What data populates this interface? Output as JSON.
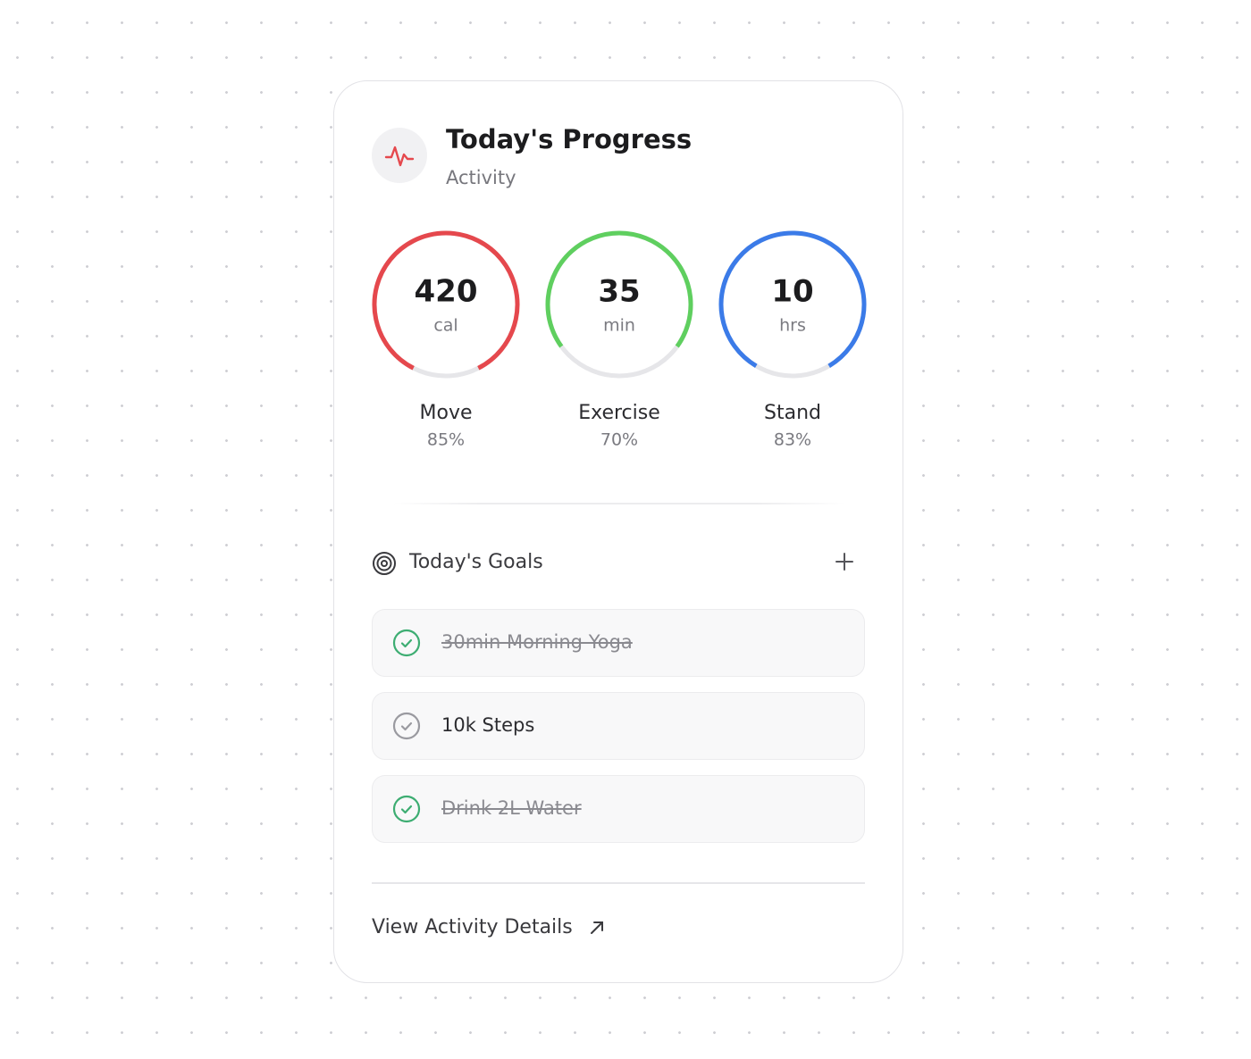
{
  "header": {
    "title": "Today's Progress",
    "subtitle": "Activity"
  },
  "rings": [
    {
      "value": 420,
      "unit": "cal",
      "label": "Move",
      "percent": {
        "value": 85,
        "label": "85%"
      },
      "color": "#e5484d"
    },
    {
      "value": 35,
      "unit": "min",
      "label": "Exercise",
      "percent": {
        "value": 70,
        "label": "70%"
      },
      "color": "#5fcf5f"
    },
    {
      "value": 10,
      "unit": "hrs",
      "label": "Stand",
      "percent": {
        "value": 83,
        "label": "83%"
      },
      "color": "#3b7be8"
    }
  ],
  "goals": {
    "title": "Today's Goals",
    "items": [
      {
        "text": "30min Morning Yoga",
        "done": true
      },
      {
        "text": "10k Steps",
        "done": false
      },
      {
        "text": "Drink 2L Water",
        "done": true
      }
    ]
  },
  "footer": {
    "link": "View Activity Details"
  }
}
